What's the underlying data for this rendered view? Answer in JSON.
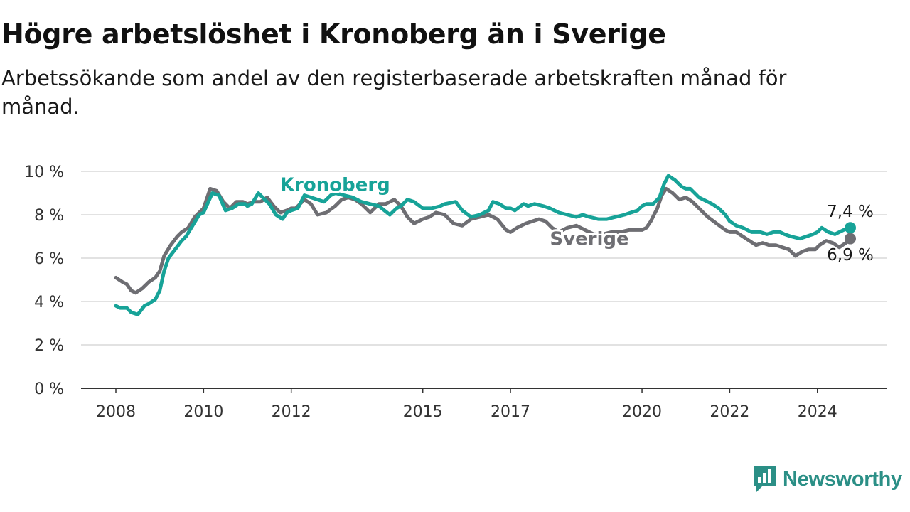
{
  "header": {
    "title": "Högre arbetslöshet i Kronoberg än i Sverige",
    "subtitle": "Arbetssökande som andel av den registerbaserade arbetskraften månad för månad."
  },
  "brand": {
    "name": "Newsworthy",
    "icon": "newsworthy-logo-icon",
    "color": "#2b8f86"
  },
  "chart_data": {
    "type": "line",
    "title": "Högre arbetslöshet i Kronoberg än i Sverige",
    "subtitle": "Arbetssökande som andel av den registerbaserade arbetskraften månad för månad.",
    "xlabel": "",
    "ylabel": "",
    "y_unit": "%",
    "xlim": [
      2008.0,
      2025.0
    ],
    "ylim": [
      0,
      10
    ],
    "y_ticks": [
      0,
      2,
      4,
      6,
      8,
      10
    ],
    "y_tick_labels": [
      "0 %",
      "2 %",
      "4 %",
      "6 %",
      "8 %",
      "10 %"
    ],
    "x_ticks": [
      2008,
      2010,
      2012,
      2015,
      2017,
      2020,
      2022,
      2024
    ],
    "x_tick_labels": [
      "2008",
      "2010",
      "2012",
      "2015",
      "2017",
      "2020",
      "2022",
      "2024"
    ],
    "grid": true,
    "legend": "direct labels on lines",
    "series": [
      {
        "name": "Kronoberg",
        "color": "#17a398",
        "end_label": "7,4 %",
        "x": [
          2008.0,
          2008.1,
          2008.25,
          2008.35,
          2008.5,
          2008.65,
          2008.75,
          2008.9,
          2009.0,
          2009.1,
          2009.2,
          2009.35,
          2009.5,
          2009.6,
          2009.75,
          2009.9,
          2010.0,
          2010.2,
          2010.35,
          2010.5,
          2010.65,
          2010.8,
          2010.95,
          2011.0,
          2011.1,
          2011.25,
          2011.35,
          2011.5,
          2011.65,
          2011.8,
          2011.9,
          2012.0,
          2012.15,
          2012.3,
          2012.45,
          2012.6,
          2012.75,
          2012.9,
          2013.0,
          2013.2,
          2013.4,
          2013.6,
          2013.8,
          2014.0,
          2014.25,
          2014.4,
          2014.5,
          2014.65,
          2014.8,
          2015.0,
          2015.2,
          2015.4,
          2015.5,
          2015.75,
          2015.9,
          2016.1,
          2016.3,
          2016.5,
          2016.6,
          2016.75,
          2016.9,
          2017.0,
          2017.1,
          2017.3,
          2017.4,
          2017.55,
          2017.75,
          2017.9,
          2018.1,
          2018.3,
          2018.5,
          2018.65,
          2018.8,
          2019.0,
          2019.2,
          2019.4,
          2019.6,
          2019.75,
          2019.9,
          2020.0,
          2020.1,
          2020.25,
          2020.4,
          2020.5,
          2020.6,
          2020.75,
          2020.9,
          2021.0,
          2021.1,
          2021.3,
          2021.5,
          2021.6,
          2021.75,
          2021.9,
          2022.0,
          2022.15,
          2022.3,
          2022.5,
          2022.7,
          2022.85,
          2023.0,
          2023.15,
          2023.25,
          2023.4,
          2023.6,
          2023.75,
          2023.9,
          2024.0,
          2024.1,
          2024.25,
          2024.4,
          2024.6,
          2024.75
        ],
        "y": [
          3.8,
          3.7,
          3.7,
          3.5,
          3.4,
          3.8,
          3.9,
          4.1,
          4.5,
          5.4,
          6.0,
          6.4,
          6.8,
          7.0,
          7.5,
          8.0,
          8.1,
          9.0,
          8.9,
          8.2,
          8.3,
          8.5,
          8.5,
          8.4,
          8.5,
          9.0,
          8.8,
          8.5,
          8.0,
          7.8,
          8.1,
          8.2,
          8.3,
          8.9,
          8.8,
          8.7,
          8.6,
          8.9,
          9.0,
          8.9,
          8.8,
          8.6,
          8.5,
          8.4,
          8.0,
          8.3,
          8.4,
          8.7,
          8.6,
          8.3,
          8.3,
          8.4,
          8.5,
          8.6,
          8.2,
          7.9,
          8.0,
          8.2,
          8.6,
          8.5,
          8.3,
          8.3,
          8.2,
          8.5,
          8.4,
          8.5,
          8.4,
          8.3,
          8.1,
          8.0,
          7.9,
          8.0,
          7.9,
          7.8,
          7.8,
          7.9,
          8.0,
          8.1,
          8.2,
          8.4,
          8.5,
          8.5,
          8.8,
          9.4,
          9.8,
          9.6,
          9.3,
          9.2,
          9.2,
          8.8,
          8.6,
          8.5,
          8.3,
          8.0,
          7.7,
          7.5,
          7.4,
          7.2,
          7.2,
          7.1,
          7.2,
          7.2,
          7.1,
          7.0,
          6.9,
          7.0,
          7.1,
          7.2,
          7.4,
          7.2,
          7.1,
          7.3,
          7.4
        ]
      },
      {
        "name": "Sverige",
        "color": "#6e6e73",
        "end_label": "6,9 %",
        "x": [
          2008.0,
          2008.15,
          2008.25,
          2008.35,
          2008.45,
          2008.6,
          2008.75,
          2008.9,
          2009.0,
          2009.1,
          2009.25,
          2009.4,
          2009.5,
          2009.65,
          2009.8,
          2009.95,
          2010.0,
          2010.15,
          2010.3,
          2010.45,
          2010.6,
          2010.75,
          2010.9,
          2011.0,
          2011.15,
          2011.3,
          2011.45,
          2011.6,
          2011.75,
          2011.9,
          2012.0,
          2012.1,
          2012.3,
          2012.45,
          2012.6,
          2012.8,
          2013.0,
          2013.15,
          2013.3,
          2013.45,
          2013.6,
          2013.8,
          2014.0,
          2014.15,
          2014.35,
          2014.5,
          2014.65,
          2014.8,
          2015.0,
          2015.15,
          2015.3,
          2015.5,
          2015.7,
          2015.9,
          2016.1,
          2016.3,
          2016.5,
          2016.7,
          2016.9,
          2017.0,
          2017.15,
          2017.35,
          2017.5,
          2017.65,
          2017.8,
          2017.95,
          2018.1,
          2018.3,
          2018.5,
          2018.7,
          2018.9,
          2019.1,
          2019.3,
          2019.5,
          2019.7,
          2019.85,
          2020.0,
          2020.1,
          2020.2,
          2020.35,
          2020.45,
          2020.55,
          2020.7,
          2020.85,
          2021.0,
          2021.15,
          2021.3,
          2021.5,
          2021.7,
          2021.9,
          2022.0,
          2022.15,
          2022.3,
          2022.45,
          2022.6,
          2022.75,
          2022.9,
          2023.05,
          2023.2,
          2023.35,
          2023.5,
          2023.65,
          2023.8,
          2023.95,
          2024.05,
          2024.2,
          2024.35,
          2024.5,
          2024.65,
          2024.75
        ],
        "y": [
          5.1,
          4.9,
          4.8,
          4.5,
          4.4,
          4.6,
          4.9,
          5.1,
          5.4,
          6.1,
          6.6,
          7.0,
          7.2,
          7.4,
          7.9,
          8.2,
          8.3,
          9.2,
          9.1,
          8.6,
          8.3,
          8.6,
          8.6,
          8.5,
          8.6,
          8.6,
          8.8,
          8.4,
          8.1,
          8.2,
          8.3,
          8.3,
          8.7,
          8.5,
          8.0,
          8.1,
          8.4,
          8.7,
          8.8,
          8.7,
          8.5,
          8.1,
          8.5,
          8.5,
          8.7,
          8.4,
          7.9,
          7.6,
          7.8,
          7.9,
          8.1,
          8.0,
          7.6,
          7.5,
          7.8,
          7.9,
          8.0,
          7.8,
          7.3,
          7.2,
          7.4,
          7.6,
          7.7,
          7.8,
          7.7,
          7.4,
          7.2,
          7.4,
          7.5,
          7.3,
          7.1,
          7.1,
          7.2,
          7.2,
          7.3,
          7.3,
          7.3,
          7.4,
          7.7,
          8.3,
          8.9,
          9.2,
          9.0,
          8.7,
          8.8,
          8.6,
          8.3,
          7.9,
          7.6,
          7.3,
          7.2,
          7.2,
          7.0,
          6.8,
          6.6,
          6.7,
          6.6,
          6.6,
          6.5,
          6.4,
          6.1,
          6.3,
          6.4,
          6.4,
          6.6,
          6.8,
          6.7,
          6.5,
          6.7,
          6.9
        ]
      }
    ],
    "annotations": [
      {
        "text": "Kronoberg",
        "series": "Kronoberg",
        "x": 2013.0,
        "y": 9.4
      },
      {
        "text": "Sverige",
        "series": "Sverige",
        "x": 2018.8,
        "y": 6.9
      },
      {
        "text": "7,4 %",
        "series": "Kronoberg",
        "x": 2024.75,
        "y": 8.2
      },
      {
        "text": "6,9 %",
        "series": "Sverige",
        "x": 2024.75,
        "y": 6.2
      }
    ]
  }
}
